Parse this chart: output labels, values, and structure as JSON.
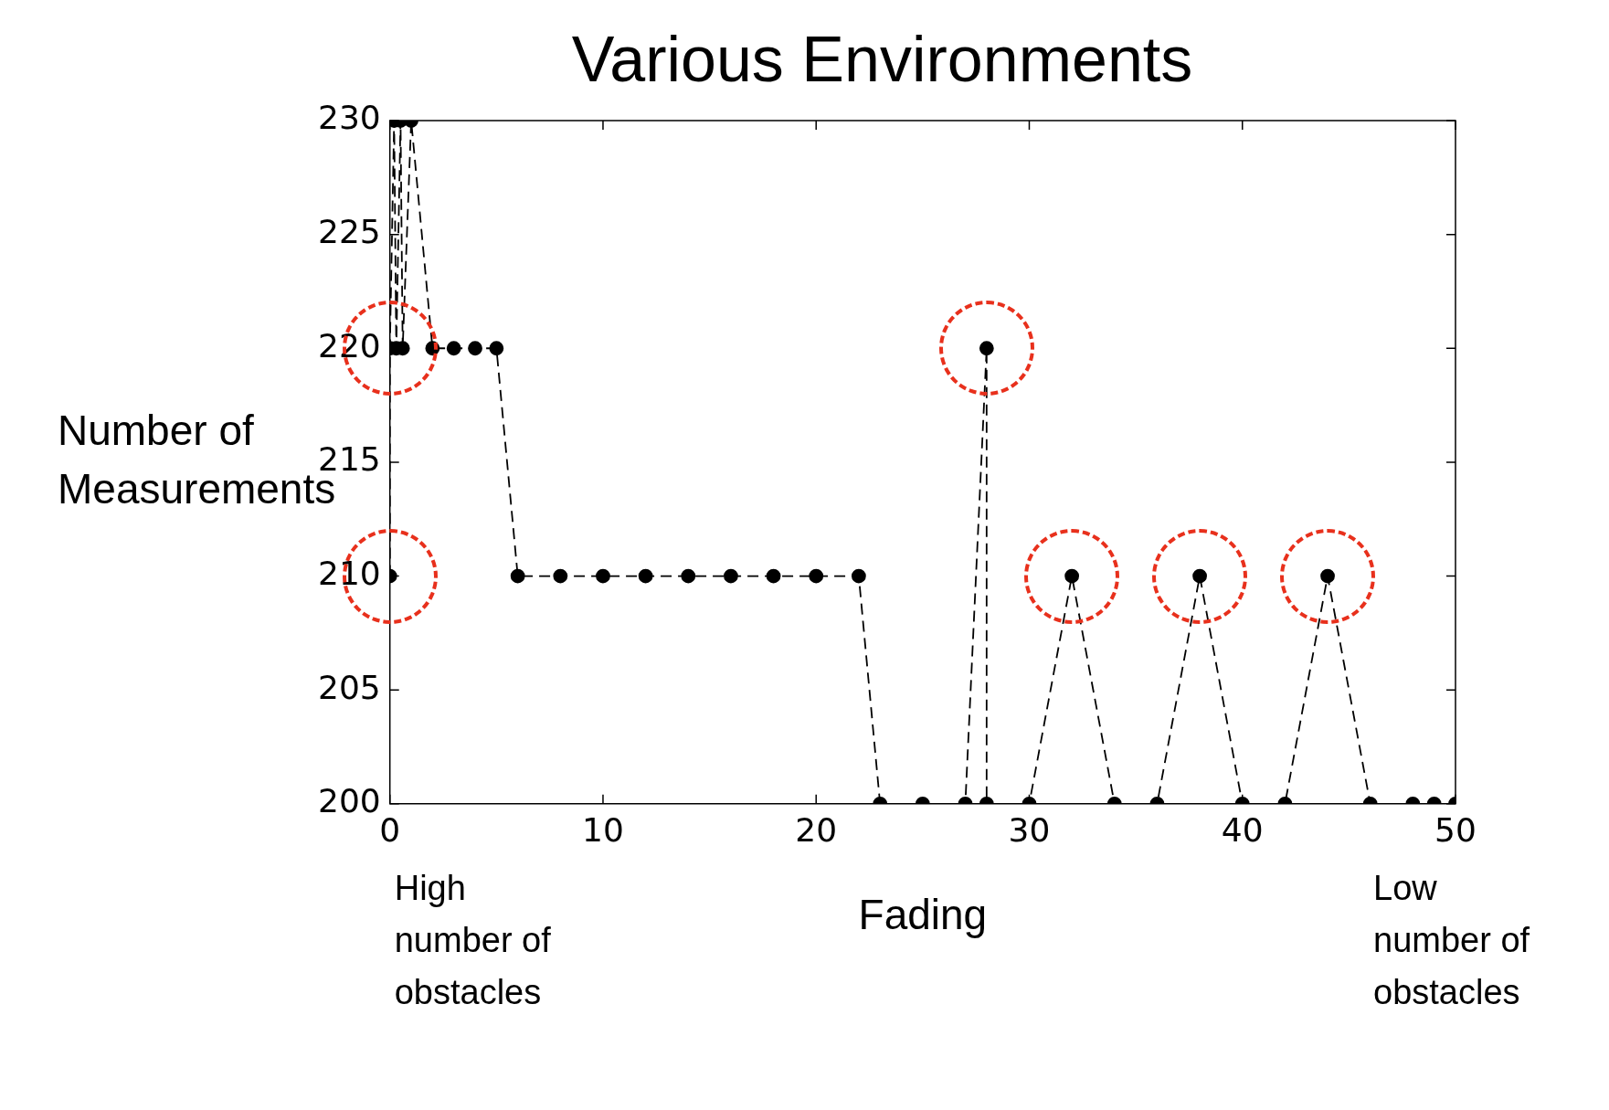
{
  "chart_data": {
    "type": "line",
    "title": "Various Environments",
    "xlabel": "Fading",
    "ylabel": "Number of Measurements",
    "x": [
      0,
      0,
      0.2,
      0.3,
      0.5,
      0.6,
      1,
      2,
      3,
      4,
      5,
      6,
      8,
      10,
      12,
      14,
      16,
      18,
      20,
      22,
      23,
      25,
      27,
      28,
      28,
      30,
      32,
      34,
      36,
      38,
      40,
      42,
      44,
      46,
      48,
      49,
      50
    ],
    "values": [
      210,
      220,
      230,
      220,
      230,
      220,
      230,
      220,
      220,
      220,
      220,
      210,
      210,
      210,
      210,
      210,
      210,
      210,
      210,
      210,
      200,
      200,
      200,
      220,
      200,
      200,
      210,
      200,
      200,
      210,
      200,
      200,
      210,
      200,
      200,
      200,
      200
    ],
    "color": "#000000",
    "marker": "circle",
    "line_style": "dashed",
    "xlim": [
      0,
      50
    ],
    "xticks": [
      0,
      10,
      20,
      30,
      40,
      50
    ],
    "ylim": [
      200,
      230
    ],
    "yticks": [
      200,
      205,
      210,
      215,
      220,
      225,
      230
    ],
    "grid": false,
    "legend": false,
    "annotations": [
      "High number of obstacles",
      "Low number of obstacles"
    ]
  }
}
